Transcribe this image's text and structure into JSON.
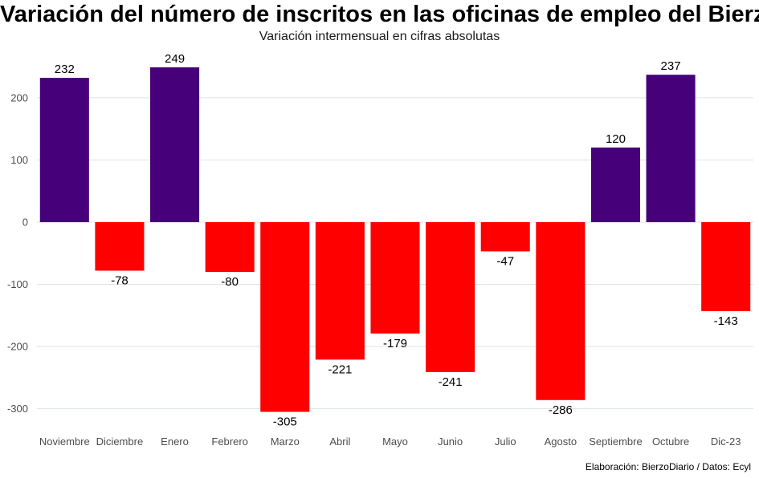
{
  "chart_data": {
    "type": "bar",
    "title": "Variación del número de inscritos en las oficinas de empleo del Bierzo",
    "subtitle": "Variación intermensual en cifras absolutas",
    "caption": "Elaboración: BierzoDiario / Datos: Ecyl",
    "categories": [
      "Noviembre",
      "Diciembre",
      "Enero",
      "Febrero",
      "Marzo",
      "Abril",
      "Mayo",
      "Junio",
      "Julio",
      "Agosto",
      "Septiembre",
      "Octubre",
      "Dic-23"
    ],
    "values": [
      232,
      -78,
      249,
      -80,
      -305,
      -221,
      -179,
      -241,
      -47,
      -286,
      120,
      237,
      -143
    ],
    "y_ticks": [
      -300,
      -200,
      -100,
      0,
      100,
      200
    ],
    "ylim": [
      -330,
      275
    ],
    "grid": true,
    "colors": {
      "positive": "#460079",
      "negative": "#ff0000",
      "grid": "#dde3e8"
    }
  }
}
